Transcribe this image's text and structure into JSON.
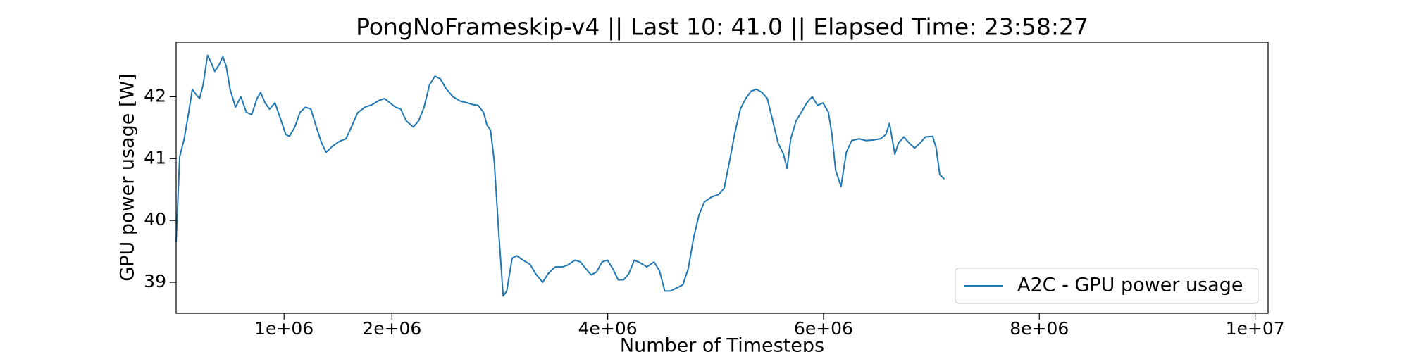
{
  "chart_data": {
    "type": "line",
    "title": "PongNoFrameskip-v4 || Last 10: 41.0 || Elapsed Time: 23:58:27",
    "x_label": "Number of Timesteps",
    "y_label": "GPU power usage [W]",
    "legend_position": "lower right",
    "x": [
      0,
      33000,
      75000,
      117000,
      150000,
      183000,
      217000,
      250000,
      291000,
      325000,
      358000,
      400000,
      433000,
      466000,
      500000,
      550000,
      600000,
      650000,
      700000,
      750000,
      783000,
      824000,
      866000,
      916000,
      966000,
      1016000,
      1050000,
      1100000,
      1149000,
      1199000,
      1249000,
      1299000,
      1349000,
      1390000,
      1449000,
      1515000,
      1574000,
      1632000,
      1682000,
      1749000,
      1815000,
      1882000,
      1932000,
      1982000,
      2032000,
      2082000,
      2132000,
      2198000,
      2248000,
      2298000,
      2348000,
      2398000,
      2448000,
      2498000,
      2565000,
      2631000,
      2698000,
      2756000,
      2798000,
      2848000,
      2881000,
      2914000,
      2948000,
      2990000,
      3031000,
      3064000,
      3114000,
      3156000,
      3214000,
      3281000,
      3331000,
      3397000,
      3447000,
      3514000,
      3580000,
      3630000,
      3697000,
      3747000,
      3797000,
      3847000,
      3897000,
      3947000,
      3997000,
      4047000,
      4097000,
      4147000,
      4196000,
      4246000,
      4296000,
      4363000,
      4429000,
      4479000,
      4529000,
      4579000,
      4629000,
      4696000,
      4746000,
      4796000,
      4846000,
      4896000,
      4963000,
      5029000,
      5079000,
      5129000,
      5179000,
      5229000,
      5279000,
      5329000,
      5379000,
      5429000,
      5479000,
      5529000,
      5579000,
      5629000,
      5662000,
      5696000,
      5746000,
      5795000,
      5845000,
      5895000,
      5945000,
      5995000,
      6045000,
      6078000,
      6112000,
      6162000,
      6211000,
      6261000,
      6328000,
      6395000,
      6461000,
      6528000,
      6578000,
      6611000,
      6661000,
      6694000,
      6744000,
      6794000,
      6844000,
      6894000,
      6944000,
      7011000,
      7044000,
      7077000,
      7119000
    ],
    "series": [
      {
        "name": "A2C - GPU power usage",
        "color": "#1f77b4",
        "values": [
          39.65,
          41.03,
          41.32,
          41.75,
          42.12,
          42.04,
          41.97,
          42.19,
          42.67,
          42.55,
          42.41,
          42.52,
          42.65,
          42.48,
          42.12,
          41.83,
          42.0,
          41.75,
          41.71,
          41.97,
          42.07,
          41.9,
          41.8,
          41.9,
          41.65,
          41.39,
          41.36,
          41.51,
          41.75,
          41.83,
          41.8,
          41.51,
          41.25,
          41.1,
          41.2,
          41.28,
          41.32,
          41.54,
          41.74,
          41.83,
          41.87,
          41.94,
          41.97,
          41.9,
          41.83,
          41.8,
          41.61,
          41.51,
          41.61,
          41.83,
          42.19,
          42.33,
          42.29,
          42.14,
          42.0,
          41.93,
          41.9,
          41.87,
          41.86,
          41.75,
          41.54,
          41.46,
          40.96,
          39.8,
          38.78,
          38.86,
          39.39,
          39.43,
          39.36,
          39.29,
          39.14,
          39.0,
          39.14,
          39.25,
          39.25,
          39.28,
          39.36,
          39.33,
          39.22,
          39.12,
          39.17,
          39.33,
          39.36,
          39.22,
          39.04,
          39.04,
          39.14,
          39.36,
          39.32,
          39.25,
          39.33,
          39.19,
          38.86,
          38.86,
          38.9,
          38.96,
          39.22,
          39.72,
          40.09,
          40.3,
          40.38,
          40.42,
          40.52,
          40.96,
          41.42,
          41.8,
          41.97,
          42.09,
          42.12,
          42.07,
          41.97,
          41.61,
          41.25,
          41.07,
          40.84,
          41.32,
          41.61,
          41.75,
          41.9,
          42.0,
          41.86,
          41.9,
          41.75,
          41.39,
          40.81,
          40.55,
          41.1,
          41.29,
          41.32,
          41.29,
          41.3,
          41.32,
          41.39,
          41.57,
          41.07,
          41.25,
          41.35,
          41.25,
          41.17,
          41.25,
          41.35,
          41.36,
          41.17,
          40.74,
          40.67
        ]
      }
    ],
    "xlim": [
      0,
      10120000
    ],
    "ylim": [
      38.5,
      42.88
    ],
    "xticks": [
      {
        "value": 1000000,
        "label": "1e+06"
      },
      {
        "value": 2000000,
        "label": "2e+06"
      },
      {
        "value": 4000000,
        "label": "4e+06"
      },
      {
        "value": 6000000,
        "label": "6e+06"
      },
      {
        "value": 8000000,
        "label": "8e+06"
      },
      {
        "value": 10000000,
        "label": "1e+07"
      }
    ],
    "yticks": [
      39,
      40,
      41,
      42
    ]
  }
}
